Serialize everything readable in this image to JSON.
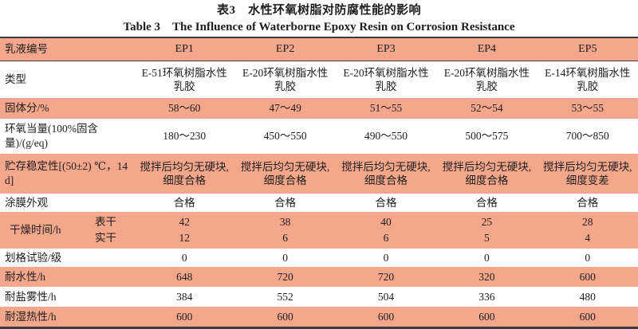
{
  "title": {
    "zh": "表3 水性环氧树脂对防腐性能的影响",
    "en": "Table 3 The Influence of Waterborne Epoxy Resin on Corrosion Resistance"
  },
  "colors": {
    "shaded_row": "#F5A78C",
    "plain_row": "#FFFFFF",
    "border": "#3B3B3B",
    "text": "#1E1E1E"
  },
  "table": {
    "header": {
      "label": "乳液编号",
      "columns": [
        "EP1",
        "EP2",
        "EP3",
        "EP4",
        "EP5"
      ]
    },
    "rows": [
      {
        "label": "类型",
        "shaded": false,
        "values": [
          "E-51环氧树脂水性乳胶",
          "E-20环氧树脂水性乳胶",
          "E-20环氧树脂水性乳胶",
          "E-20环氧树脂水性乳胶",
          "E-14环氧树脂水性乳胶"
        ]
      },
      {
        "label": "固体分/%",
        "shaded": true,
        "values": [
          "58～60",
          "47～49",
          "51～55",
          "52～54",
          "53～55"
        ]
      },
      {
        "label": "环氧当量(100%固含量)/(g/eq)",
        "shaded": false,
        "values": [
          "180～230",
          "450～550",
          "490～550",
          "500～575",
          "700～850"
        ]
      },
      {
        "label": "贮存稳定性[(50±2) ℃，14 d]",
        "shaded": true,
        "values": [
          "搅拌后均匀无硬块,细度合格",
          "搅拌后均匀无硬块,细度合格",
          "搅拌后均匀无硬块,细度合格",
          "搅拌后均匀无硬块,细度合格",
          "搅拌后均匀无硬块,细度变差"
        ]
      },
      {
        "label": "涂膜外观",
        "shaded": false,
        "values": [
          "合格",
          "合格",
          "合格",
          "合格",
          "合格"
        ]
      },
      {
        "label": "干燥时间/h",
        "shaded": true,
        "subrows": [
          {
            "sublabel": "表干",
            "values": [
              "42",
              "38",
              "40",
              "25",
              "28"
            ]
          },
          {
            "sublabel": "实干",
            "values": [
              "12",
              "6",
              "6",
              "5",
              "4"
            ]
          }
        ]
      },
      {
        "label": "划格试验/级",
        "shaded": false,
        "values": [
          "0",
          "0",
          "0",
          "0",
          "0"
        ]
      },
      {
        "label": "耐水性/h",
        "shaded": true,
        "values": [
          "648",
          "720",
          "720",
          "320",
          "600"
        ]
      },
      {
        "label": "耐盐雾性/h",
        "shaded": false,
        "values": [
          "384",
          "552",
          "504",
          "336",
          "480"
        ]
      },
      {
        "label": "耐湿热性/h",
        "shaded": true,
        "values": [
          "600",
          "600",
          "600",
          "600",
          "600"
        ]
      }
    ]
  }
}
